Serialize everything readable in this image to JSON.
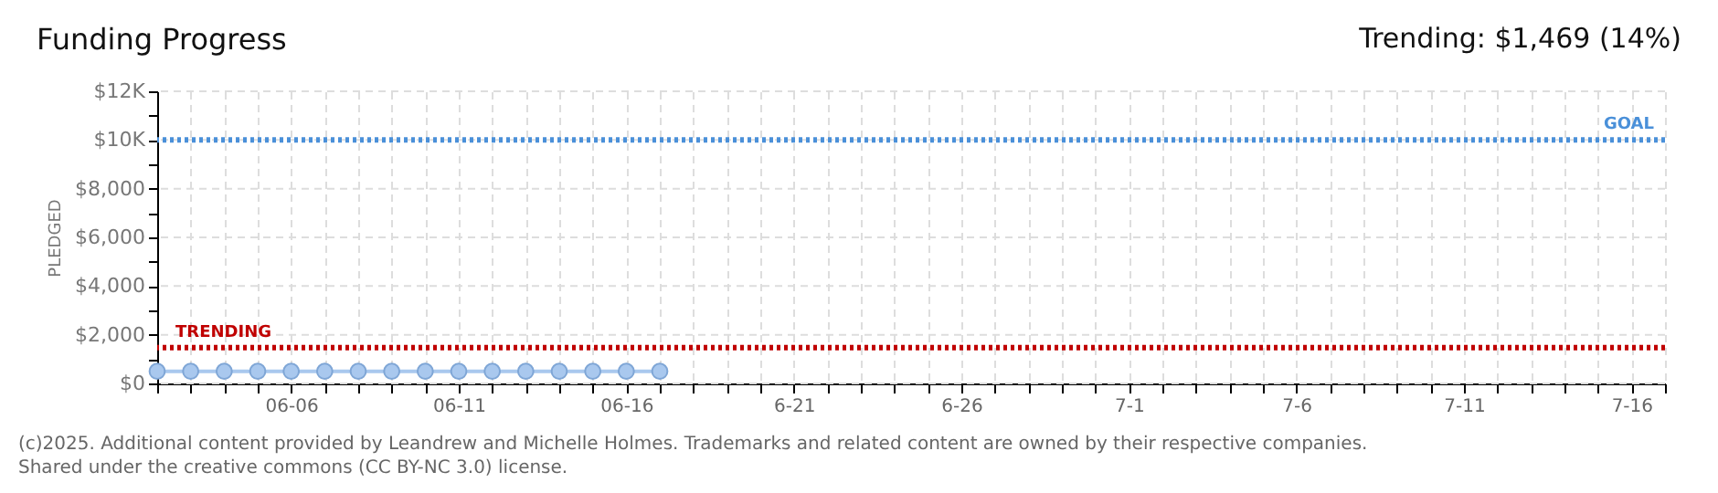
{
  "chart_data": {
    "type": "line",
    "title": "Funding Progress",
    "ylabel": "PLEDGED",
    "x": [
      "--06-02",
      "--06-03",
      "--06-04",
      "--06-05",
      "--06-06",
      "--06-07",
      "--06-08",
      "--06-09",
      "--06-10",
      "--06-11",
      "--06-12",
      "--06-13",
      "--06-14",
      "--06-15",
      "--06-16",
      "--06-17"
    ],
    "series": [
      {
        "color": "#a9c8ee",
        "values": [
          500,
          500,
          500,
          500,
          500,
          500,
          500,
          500,
          500,
          500,
          500,
          500,
          500,
          500,
          500,
          500
        ]
      }
    ],
    "marker": "circle",
    "xlim": [
      "--06-02",
      "--07-17"
    ],
    "xticks": [
      {
        "value": "--06-02",
        "label": null
      },
      {
        "value": "--06-03",
        "label": null
      },
      {
        "value": "--06-04",
        "label": null
      },
      {
        "value": "--06-05",
        "label": null
      },
      {
        "value": "--06-06",
        "label": "06-06"
      },
      {
        "value": "--06-07",
        "label": null
      },
      {
        "value": "--06-08",
        "label": null
      },
      {
        "value": "--06-09",
        "label": null
      },
      {
        "value": "--06-10",
        "label": null
      },
      {
        "value": "--06-11",
        "label": "06-11"
      },
      {
        "value": "--06-12",
        "label": null
      },
      {
        "value": "--06-13",
        "label": null
      },
      {
        "value": "--06-14",
        "label": null
      },
      {
        "value": "--06-15",
        "label": null
      },
      {
        "value": "--06-16",
        "label": "06-16"
      },
      {
        "value": "--06-17",
        "label": null
      },
      {
        "value": "--06-18",
        "label": null
      },
      {
        "value": "--06-19",
        "label": null
      },
      {
        "value": "--06-20",
        "label": null
      },
      {
        "value": "--06-21",
        "label": "6-21"
      },
      {
        "value": "--06-22",
        "label": null
      },
      {
        "value": "--06-23",
        "label": null
      },
      {
        "value": "--06-24",
        "label": null
      },
      {
        "value": "--06-25",
        "label": null
      },
      {
        "value": "--06-26",
        "label": "6-26"
      },
      {
        "value": "--06-27",
        "label": null
      },
      {
        "value": "--06-28",
        "label": null
      },
      {
        "value": "--06-29",
        "label": null
      },
      {
        "value": "--06-30",
        "label": null
      },
      {
        "value": "--07-01",
        "label": "7-1"
      },
      {
        "value": "--07-02",
        "label": null
      },
      {
        "value": "--07-03",
        "label": null
      },
      {
        "value": "--07-04",
        "label": null
      },
      {
        "value": "--07-05",
        "label": null
      },
      {
        "value": "--07-06",
        "label": "7-6"
      },
      {
        "value": "--07-07",
        "label": null
      },
      {
        "value": "--07-08",
        "label": null
      },
      {
        "value": "--07-09",
        "label": null
      },
      {
        "value": "--07-10",
        "label": null
      },
      {
        "value": "--07-11",
        "label": "7-11"
      },
      {
        "value": "--07-12",
        "label": null
      },
      {
        "value": "--07-13",
        "label": null
      },
      {
        "value": "--07-14",
        "label": null
      },
      {
        "value": "--07-15",
        "label": null
      },
      {
        "value": "--07-16",
        "label": "7-16"
      },
      {
        "value": "--07-17",
        "label": null
      }
    ],
    "ylim": [
      0,
      12000
    ],
    "yticks": [
      {
        "value": 0,
        "label": "$0"
      },
      {
        "value": 1000,
        "label": null
      },
      {
        "value": 2000,
        "label": "$2,000"
      },
      {
        "value": 3000,
        "label": null
      },
      {
        "value": 4000,
        "label": "$4,000"
      },
      {
        "value": 5000,
        "label": null
      },
      {
        "value": 6000,
        "label": "$6,000"
      },
      {
        "value": 7000,
        "label": null
      },
      {
        "value": 8000,
        "label": "$8,000"
      },
      {
        "value": 9000,
        "label": null
      },
      {
        "value": 10000,
        "label": "$10K"
      },
      {
        "value": 11000,
        "label": null
      },
      {
        "value": 12000,
        "label": "$12K"
      }
    ],
    "grid": true,
    "ref_lines": [
      {
        "axis": "y",
        "value": 10000,
        "label": "GOAL",
        "color": "#4a90d9",
        "line_style": "dotted"
      },
      {
        "axis": "y",
        "value": 1469,
        "label": "TRENDING",
        "color": "#c00000",
        "line_style": "dotted"
      }
    ],
    "annotations": [
      "Trending: $1,469 (14%)",
      "(c)2025. Additional content provided by Leandrew and Michelle Holmes. Trademarks and related content are owned by their respective companies.",
      "Shared under the creative commons (CC BY-NC 3.0) license."
    ]
  }
}
